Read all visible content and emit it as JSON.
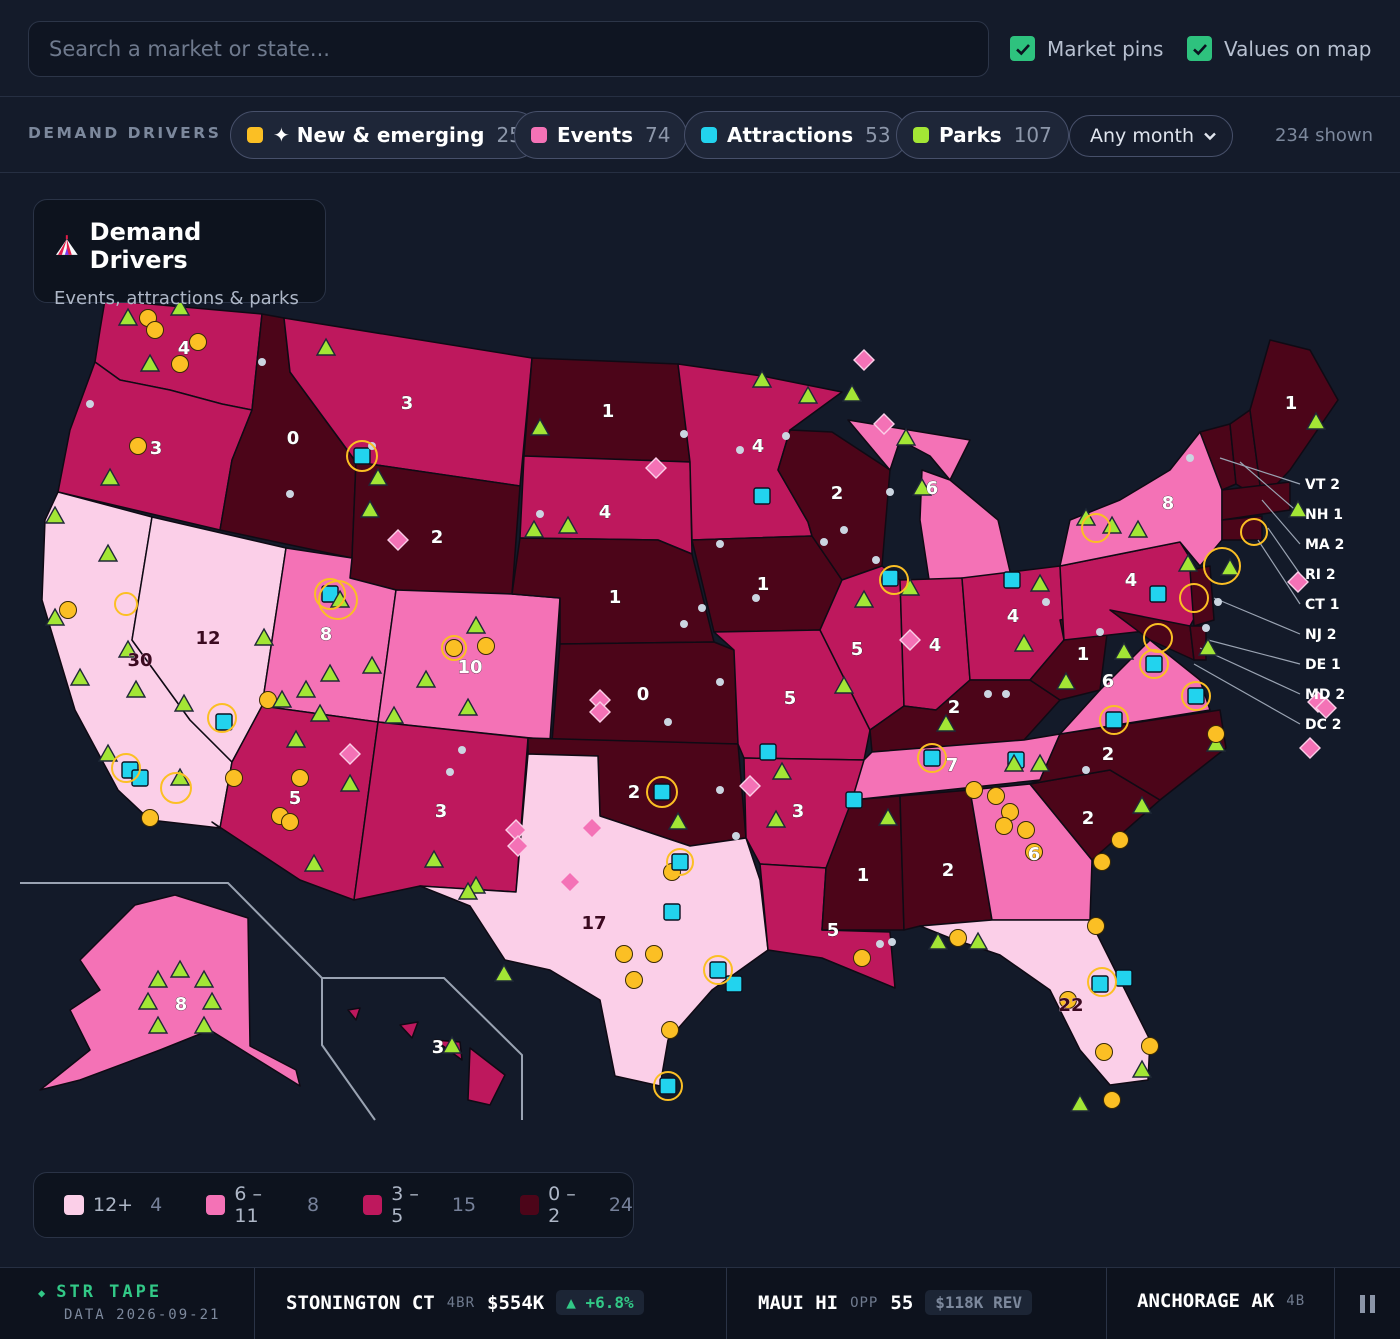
{
  "search": {
    "placeholder": "Search a market or state..."
  },
  "toggles": [
    {
      "label": "Market pins",
      "checked": true
    },
    {
      "label": "Values on map",
      "checked": true
    }
  ],
  "filters": {
    "label": "DEMAND DRIVERS",
    "chips": [
      {
        "label": "✦ New & emerging",
        "count": "25",
        "color": "#fbbf24"
      },
      {
        "label": "Events",
        "count": "74",
        "color": "#f472b6"
      },
      {
        "label": "Attractions",
        "count": "53",
        "color": "#22d3ee"
      },
      {
        "label": "Parks",
        "count": "107",
        "color": "#a3e635"
      }
    ],
    "month": "Any month",
    "shown": "234 shown"
  },
  "panel": {
    "title": "Demand Drivers",
    "subtitle": "Events, attractions & parks",
    "icon": "circus-tent-icon"
  },
  "legend": [
    {
      "label": "12+",
      "count": "4",
      "color": "#fbcfe8"
    },
    {
      "label": "6 – 11",
      "count": "8",
      "color": "#f472b6"
    },
    {
      "label": "3 – 5",
      "count": "15",
      "color": "#be185d"
    },
    {
      "label": "0 – 2",
      "count": "24",
      "color": "#4c0519"
    }
  ],
  "state_values": {
    "WA": "4",
    "OR": "3",
    "CA": "30",
    "NV": "12",
    "ID": "0",
    "MT": "3",
    "WY": "2",
    "UT": "8",
    "CO": "10",
    "AZ": "5",
    "NM": "3",
    "ND": "1",
    "SD": "4",
    "NE": "1",
    "KS": "0",
    "OK": "2",
    "TX": "17",
    "MN": "4",
    "IA": "1",
    "MO": "5",
    "AR": "3",
    "LA": "5",
    "WI": "2",
    "IL": "5",
    "MS": "1",
    "MI": "6",
    "IN": "4",
    "KY": "2",
    "TN": "7",
    "AL": "2",
    "OH": "4",
    "GA": "6",
    "FL": "22",
    "SC": "2",
    "NC": "2",
    "VA": "6",
    "WV": "1",
    "PA": "4",
    "NY": "8",
    "ME": "1",
    "AK": "8",
    "HI": "3"
  },
  "callouts": [
    {
      "label": "VT 2"
    },
    {
      "label": "NH 1"
    },
    {
      "label": "MA 2"
    },
    {
      "label": "RI 2"
    },
    {
      "label": "CT 1"
    },
    {
      "label": "NJ 2"
    },
    {
      "label": "DE 1"
    },
    {
      "label": "MD 2"
    },
    {
      "label": "DC 2"
    }
  ],
  "ticker": {
    "brand": "STR TAPE",
    "date": "DATA 2026-09-21",
    "items": [
      {
        "market": "STONINGTON CT",
        "beds": "4BR",
        "value": "$554K",
        "change": "▲ +6.8%"
      },
      {
        "market": "MAUI HI",
        "tag": "OPP",
        "score": "55",
        "rev": "$118K REV"
      },
      {
        "market": "ANCHORAGE AK",
        "beds": "4B"
      }
    ]
  }
}
